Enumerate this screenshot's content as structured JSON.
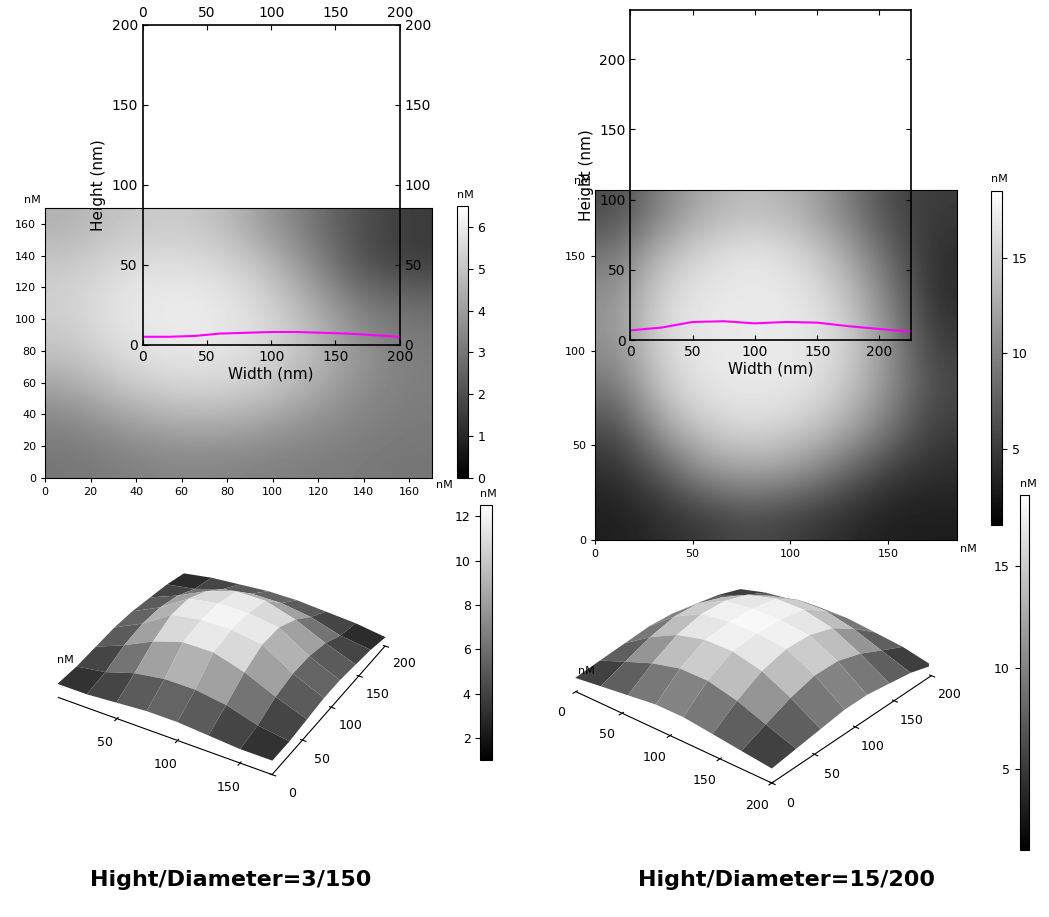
{
  "chart_data": [
    {
      "type": "line",
      "xlabel": "Width (nm)",
      "ylabel": "Height (nm)",
      "x": [
        0,
        20,
        40,
        60,
        80,
        100,
        120,
        140,
        160,
        180,
        200
      ],
      "series": [
        {
          "color": "#ff00ff",
          "values": [
            5,
            5,
            5.5,
            7,
            7.5,
            8,
            8,
            7.5,
            7,
            6,
            5
          ]
        }
      ],
      "xlim": [
        0,
        200
      ],
      "ylim": [
        0,
        200
      ],
      "xticks": [
        0,
        50,
        100,
        150,
        200
      ],
      "yticks": [
        0,
        50,
        100,
        150,
        200
      ]
    },
    {
      "type": "heatmap",
      "unit": "nM",
      "xlim": [
        0,
        170
      ],
      "ylim": [
        0,
        170
      ],
      "xticks": [
        0,
        20,
        40,
        60,
        80,
        100,
        120,
        140,
        160
      ],
      "yticks": [
        0,
        20,
        40,
        60,
        80,
        100,
        120,
        140,
        160
      ],
      "cells": [
        [
          4.5,
          5.0,
          5.2,
          5.0,
          4.0,
          3.0,
          2.0,
          1.5
        ],
        [
          5.0,
          5.5,
          5.6,
          5.5,
          4.8,
          3.5,
          2.0,
          1.5
        ],
        [
          5.3,
          5.8,
          6.0,
          5.9,
          5.4,
          4.2,
          2.8,
          2.5
        ],
        [
          5.2,
          5.8,
          6.0,
          6.0,
          5.6,
          4.8,
          3.5,
          3.0
        ],
        [
          4.8,
          5.5,
          5.8,
          5.8,
          5.5,
          4.8,
          3.8,
          3.2
        ],
        [
          4.0,
          4.8,
          5.2,
          5.3,
          5.0,
          4.3,
          3.5,
          3.2
        ],
        [
          3.3,
          3.8,
          4.2,
          4.3,
          4.0,
          3.6,
          3.3,
          3.1
        ],
        [
          3.0,
          3.2,
          3.4,
          3.4,
          3.3,
          3.2,
          3.1,
          3.0
        ]
      ],
      "colorbar": {
        "range": [
          0,
          6.5
        ],
        "ticks": [
          0,
          1,
          2,
          3,
          4,
          5,
          6
        ],
        "label": "nM"
      }
    },
    {
      "type": "surface",
      "title": "Hight/Diameter=3/150",
      "unit": "nM",
      "x": [
        0,
        25,
        50,
        75,
        100,
        125,
        150,
        175
      ],
      "y": [
        0,
        28,
        57,
        86,
        114,
        143,
        171,
        200
      ],
      "values": [
        [
          3,
          3,
          3.5,
          4,
          4,
          3.5,
          3,
          3
        ],
        [
          3,
          4,
          6,
          7,
          7,
          6,
          4,
          3
        ],
        [
          3.5,
          6,
          9,
          11,
          11,
          9,
          6,
          3.5
        ],
        [
          4,
          7,
          11,
          12,
          12,
          11,
          7,
          4
        ],
        [
          4,
          7,
          11,
          12,
          12,
          11,
          7,
          4
        ],
        [
          3.5,
          6,
          9,
          11,
          11,
          9,
          6,
          3.5
        ],
        [
          3,
          4,
          6,
          7,
          7,
          6,
          4,
          3
        ],
        [
          2,
          3,
          3.5,
          4,
          4,
          3.5,
          3,
          2
        ]
      ],
      "xlim": [
        0,
        175
      ],
      "ylim": [
        0,
        200
      ],
      "zlim": [
        0,
        13
      ],
      "xticks": [
        50,
        100,
        150
      ],
      "yticks": [
        0,
        50,
        100,
        150,
        200
      ],
      "colorbar": {
        "range": [
          1,
          12.5
        ],
        "ticks": [
          2,
          4,
          6,
          8,
          10,
          12
        ],
        "label": "nM"
      }
    },
    {
      "type": "line",
      "xlabel": "Width (nm)",
      "ylabel": "Height (nm)",
      "x": [
        0,
        25,
        50,
        75,
        100,
        125,
        150,
        175,
        200,
        225
      ],
      "series": [
        {
          "color": "#ff00ff",
          "values": [
            7,
            9,
            13,
            13.5,
            12,
            13,
            12.5,
            10,
            8,
            6
          ]
        }
      ],
      "xlim": [
        0,
        225
      ],
      "ylim": [
        0,
        235
      ],
      "xticks": [
        0,
        50,
        100,
        150,
        200
      ],
      "yticks": [
        0,
        50,
        100,
        150,
        200
      ]
    },
    {
      "type": "heatmap",
      "unit": "nM",
      "xlim": [
        0,
        185
      ],
      "ylim": [
        0,
        185
      ],
      "xticks": [
        0,
        50,
        100,
        150
      ],
      "yticks": [
        0,
        50,
        100,
        150
      ],
      "cells": [
        [
          6,
          10,
          13,
          14,
          13,
          10,
          6,
          5
        ],
        [
          9,
          14,
          16,
          17,
          16,
          13,
          8,
          4
        ],
        [
          11,
          16,
          17,
          17,
          17,
          15,
          10,
          4
        ],
        [
          11,
          16,
          17,
          17,
          17,
          16,
          11,
          5
        ],
        [
          9,
          15,
          17,
          17,
          17,
          15,
          11,
          6
        ],
        [
          6,
          12,
          15,
          16,
          15,
          13,
          9,
          5
        ],
        [
          4,
          7,
          11,
          12,
          11,
          8,
          5,
          4
        ],
        [
          3,
          4,
          5,
          6,
          5,
          4,
          3,
          3
        ]
      ],
      "colorbar": {
        "range": [
          1,
          18.5
        ],
        "ticks": [
          5,
          10,
          15
        ],
        "label": "nM"
      }
    },
    {
      "type": "surface",
      "title": "Hight/Diameter=15/200",
      "unit": "nM",
      "x": [
        0,
        28,
        57,
        86,
        114,
        143,
        171,
        200
      ],
      "y": [
        0,
        28,
        57,
        86,
        114,
        143,
        171,
        200
      ],
      "values": [
        [
          4,
          5,
          6,
          7,
          7,
          6,
          5,
          4
        ],
        [
          5,
          8,
          11,
          13,
          13,
          11,
          8,
          5
        ],
        [
          6,
          11,
          15,
          17,
          17,
          15,
          11,
          6
        ],
        [
          7,
          13,
          17,
          18,
          18,
          17,
          13,
          7
        ],
        [
          7,
          13,
          17,
          18,
          18,
          17,
          13,
          7
        ],
        [
          6,
          11,
          15,
          17,
          17,
          15,
          11,
          6
        ],
        [
          5,
          8,
          11,
          13,
          13,
          11,
          8,
          5
        ],
        [
          3,
          5,
          6,
          7,
          7,
          6,
          5,
          3
        ]
      ],
      "xlim": [
        0,
        200
      ],
      "ylim": [
        0,
        200
      ],
      "zlim": [
        0,
        19
      ],
      "xticks": [
        0,
        50,
        100,
        150,
        200
      ],
      "yticks": [
        0,
        50,
        100,
        150,
        200
      ],
      "colorbar": {
        "range": [
          1,
          18.5
        ],
        "ticks": [
          5,
          10,
          15
        ],
        "label": "nM"
      }
    }
  ]
}
